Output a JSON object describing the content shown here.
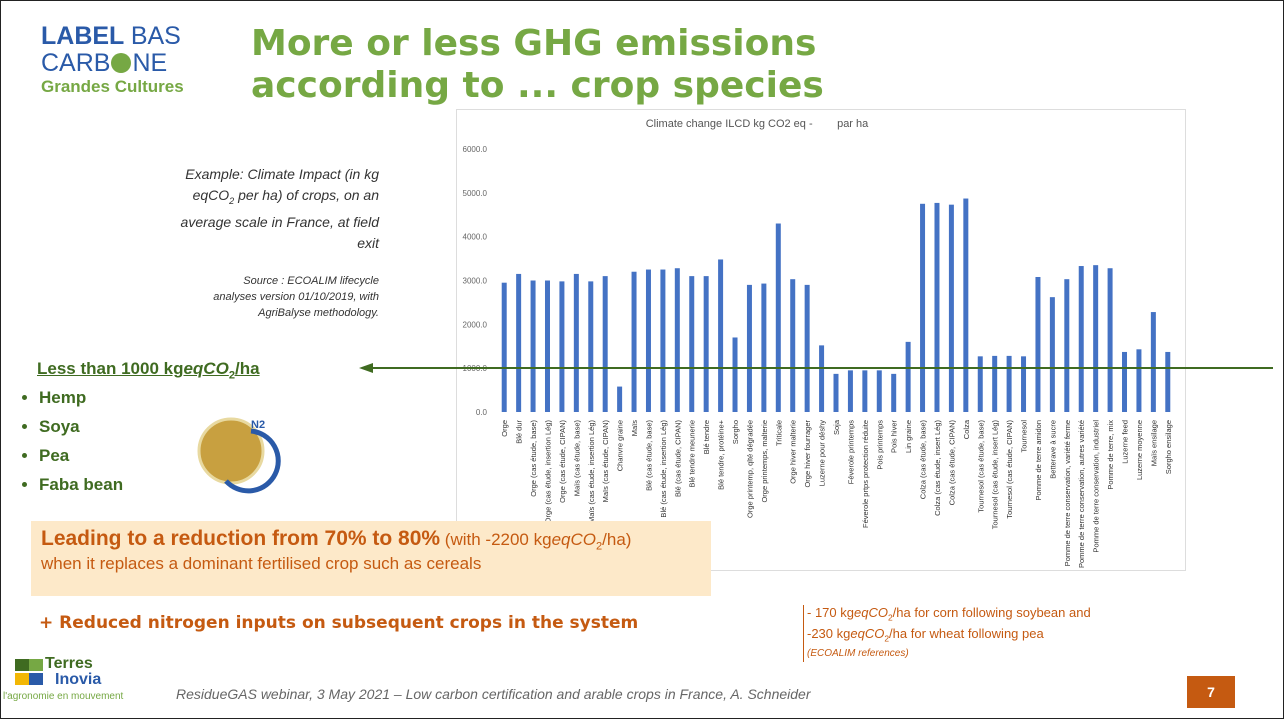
{
  "slide": {
    "logo": {
      "label": "LABEL",
      "bas": "BAS",
      "carb": "CARB",
      "ne": "NE",
      "grandes": "Grandes Cultures"
    },
    "title": [
      "More or less GHG emissions",
      "according to ... crop species"
    ],
    "example": [
      "Example: Climate Impact (in kg eqCO",
      "2",
      " per ha) of crops, on an average scale in France, at field exit"
    ],
    "source": "Source : ECOALIM lifecycle analyses version 01/10/2019, with AgriBalyse methodology.",
    "less": [
      "Less than 1000 kg",
      "eqCO",
      "2",
      "/ha"
    ],
    "bullets": [
      "Hemp",
      "Soya",
      "Pea",
      "Faba bean"
    ],
    "n2": "N2",
    "reduction": [
      "Leading to a reduction from 70% to 80%",
      " (with -2200 kg",
      "eqCO",
      "2",
      "/ha)"
    ],
    "replaces": "when it replaces a dominant fertilised crop such as cereals",
    "nitrogen": "+ Reduced nitrogen inputs on subsequent crops in the system",
    "notes": [
      [
        "- 170 kg",
        "eqCO",
        "2",
        "/ha for corn following soybean and"
      ],
      [
        "-230 kg",
        "eqCO",
        "2",
        "/ha for wheat following pea"
      ]
    ],
    "references": "(ECOALIM references)",
    "footer": "ResidueGAS webinar, 3 May 2021 – Low carbon certification and arable crops in France, A. Schneider",
    "page": "7",
    "terres": [
      "Terres",
      "Inovia",
      "l'agronomie en mouvement"
    ]
  },
  "chart_data": {
    "type": "bar",
    "title": "Climate change ILCD kg CO2 eq -        par ha",
    "color": "#4472c4",
    "grid": false,
    "categories": [
      "Orge",
      "Blé dur",
      "Orge (cas étude, base)",
      "Orge (cas étude, insertion Lég)",
      "Orge (cas étude, CIPAN)",
      "Maïs (cas étude, base)",
      "Maïs (cas étude, insertion Lég)",
      "Maïs (cas étude, CIPAN)",
      "Chanvre graine",
      "Maïs",
      "Blé (cas étude, base)",
      "Blé (cas étude, insertion Lég)",
      "Blé (cas étude, CIPAN)",
      "Blé tendre meunerie",
      "Blé tendre",
      "Blé tendre, protéine+",
      "Sorgho",
      "Orge printemp, qlté dégradée",
      "Orge printemps, malterie",
      "Triticale",
      "Orge hiver malterie",
      "Orge hiver fourrager",
      "Luzerne pour déshy",
      "Soja",
      "Féverole printemps",
      "Féverole prtps protection réduite",
      "Pois printemps",
      "Pois hiver",
      "Lin graine",
      "Colza (cas étude, base)",
      "Colza (cas étude, insert Lég)",
      "Colza (cas étude, CIPAN)",
      "Colza",
      "Tournesol (cas étude, base)",
      "Tournesol (cas étude, insert Lég)",
      "Tournesol (cas étude, CIPAN)",
      "Tournesol",
      "Pomme de terre amidon",
      "Betterave à sucre",
      "Pomme de terre conservation, variété ferme",
      "Pomme de terre conservation, autres variété",
      "Pomme de terre conservation, industriel",
      "Pomme de terre, mix",
      "Luzerne feed",
      "Luzerne moyenne",
      "Maïs ensilage",
      "Sorgho ensilage"
    ],
    "values": [
      2950,
      3150,
      3000,
      3000,
      2980,
      3150,
      2980,
      3100,
      580,
      3200,
      3250,
      3250,
      3280,
      3100,
      3100,
      3480,
      1700,
      2900,
      2930,
      4300,
      3030,
      2900,
      1520,
      870,
      950,
      950,
      950,
      870,
      1600,
      4750,
      4770,
      4730,
      4870,
      1270,
      1280,
      1280,
      1270,
      3080,
      2620,
      3030,
      3330,
      3350,
      3280,
      1370,
      1430,
      2280,
      1370
    ],
    "ylim": [
      0,
      6000
    ],
    "yticks": [
      {
        "value": 0,
        "label": "0.0"
      },
      {
        "value": 1000,
        "label": "1000.0"
      },
      {
        "value": 2000,
        "label": "2000.0"
      },
      {
        "value": 3000,
        "label": "3000.0"
      },
      {
        "value": 4000,
        "label": "4000.0"
      },
      {
        "value": 5000,
        "label": "5000.0"
      },
      {
        "value": 6000,
        "label": "6000.0"
      }
    ]
  }
}
